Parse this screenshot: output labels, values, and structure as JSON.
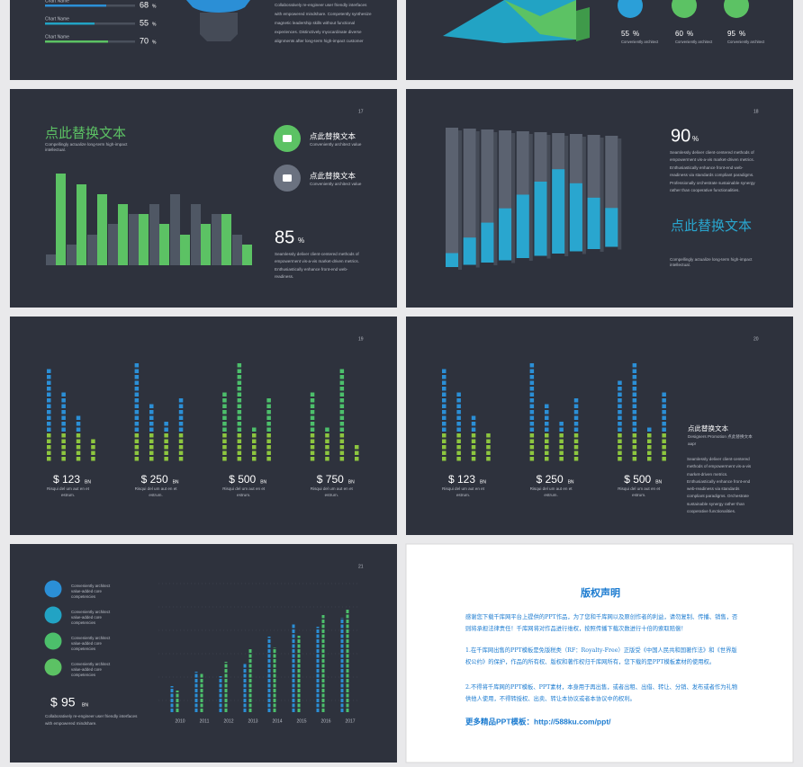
{
  "slide_a": {
    "items": [
      {
        "label": "Chart Name",
        "value": 68,
        "unit": "%"
      },
      {
        "label": "Chart Name",
        "value": 55,
        "unit": "%"
      },
      {
        "label": "Chart Name",
        "value": 70,
        "unit": "%"
      }
    ],
    "text": "Collaboratively re-engineer user friendly interfaces with empowered mindshare. Competently synthesize magnetic leadership skills without functional experiences. Distinctively myocardinate diverse alignments after long-term high-impact customer service."
  },
  "slide_b": {
    "stats": [
      {
        "value": 55,
        "unit": "%",
        "label": "Conveniently architect"
      },
      {
        "value": 60,
        "unit": "%",
        "label": "Conveniently architect"
      },
      {
        "value": 95,
        "unit": "%",
        "label": "Conveniently architect"
      }
    ]
  },
  "slide_17": {
    "page": 17,
    "title": "点此替换文本",
    "subtitle": "Compellingly actualize long-term high-impact intellectual.",
    "chart": {
      "type": "bar",
      "series": [
        {
          "color": "#4f5764",
          "values": [
            12,
            23,
            34,
            46,
            57,
            68,
            79,
            68,
            57,
            34
          ]
        },
        {
          "color": "#5cc264",
          "values": [
            102,
            90,
            79,
            68,
            57,
            46,
            34,
            46,
            57,
            23
          ]
        }
      ]
    },
    "features": [
      {
        "title": "点此替换文本",
        "text": "Conveniently architect value",
        "color": "#5cc264"
      },
      {
        "title": "点此替换文本",
        "text": "Conveniently architect value",
        "color": "#6b7280"
      }
    ],
    "stat": {
      "value": 85,
      "unit": "%"
    },
    "text": "Seamlessly deliver client-centered methods of empowerment vis-a-vis market-driven metrics. Enthusiastically enhance front-end web-readiness."
  },
  "slide_18": {
    "page": 18,
    "chart": {
      "type": "bar",
      "color": "#29a6cf",
      "values": [
        10,
        20,
        30,
        40,
        50,
        60,
        70,
        58,
        45,
        35
      ]
    },
    "stat": {
      "value": 90,
      "unit": "%"
    },
    "text": "Seamlessly deliver client-centered methods of empowerment vis-a-vis market-driven metrics. Enthusiastically enhance front-end web-readiness via standards compliant paradigms. Professionally orchestrate sustainable synergy rather than cooperative functionalities.",
    "title": "点此替换文本",
    "subtitle": "Compellingly actualize long-term high-impact intellectual."
  },
  "slide_19": {
    "page": 19,
    "groups": [
      {
        "values": [
          16,
          12,
          8,
          4
        ],
        "color": "#2b8fd6",
        "currency": "$",
        "amount": 123,
        "unit": "BN",
        "text": "Risqui del um aut en et estrum."
      },
      {
        "values": [
          17,
          10,
          7,
          11
        ],
        "color": "#2b8fd6",
        "currency": "$",
        "amount": 250,
        "unit": "BN",
        "text": "Risqui del um aut en et estrum."
      },
      {
        "values": [
          12,
          17,
          6,
          11
        ],
        "color": "#4cbf6b",
        "currency": "$",
        "amount": 500,
        "unit": "BN",
        "text": "Risqui del um aut en et estrum."
      },
      {
        "values": [
          12,
          6,
          16,
          3
        ],
        "color": "#4cbf6b",
        "currency": "$",
        "amount": 750,
        "unit": "BN",
        "text": "Risqui del um aut en et estrum."
      }
    ]
  },
  "slide_20": {
    "page": 20,
    "groups": [
      {
        "values": [
          16,
          12,
          8,
          5
        ],
        "color": "#2b8fd6",
        "currency": "$",
        "amount": 123,
        "unit": "BN",
        "text": "Risqui del um aut en et estrum."
      },
      {
        "values": [
          17,
          10,
          7,
          11
        ],
        "color": "#2b8fd6",
        "currency": "$",
        "amount": 250,
        "unit": "BN",
        "text": "Risqui del um aut en et estrum."
      },
      {
        "values": [
          14,
          17,
          6,
          12
        ],
        "color": "#2b8fd6",
        "currency": "$",
        "amount": 500,
        "unit": "BN",
        "text": "Risqui del um aut en et estrum."
      }
    ],
    "title": "点此替换文本",
    "subtitle": "Designers Promotion 点此替换文本",
    "subtitle2": "aapr",
    "text": "Seamlessly deliver client-centered methods of empowerment vis-a-vis market-driven metrics. Enthusiastically enhance front-end web-readiness via standards compliant paradigms. Orchestrate sustainable synergy rather than cooperative functionalities."
  },
  "slide_21": {
    "page": 21,
    "items": [
      {
        "text": "Conveniently architect value-added core competencies",
        "color": "#2b8fd6"
      },
      {
        "text": "Conveniently architect value-added core competencies",
        "color": "#22a3c4"
      },
      {
        "text": "Conveniently architect value-added core competencies",
        "color": "#4cbf6b"
      },
      {
        "text": "Conveniently architect value-added core competencies",
        "color": "#5cc264"
      }
    ],
    "stat": {
      "currency": "$",
      "value": 95,
      "unit": "BN"
    },
    "text": "Collaboratively re-engineer user friendly interfaces with empowered mindshare.",
    "chart": {
      "type": "bar",
      "categories": [
        "2010",
        "2011",
        "2012",
        "2013",
        "2014",
        "2015",
        "2016",
        "2017"
      ],
      "series": [
        {
          "color": "#2b8fd6",
          "values": [
            29,
            45,
            40,
            55,
            84,
            98,
            95,
            105
          ]
        },
        {
          "color": "#4cbf6b",
          "values": [
            24,
            43,
            56,
            70,
            72,
            85,
            108,
            114
          ]
        }
      ]
    }
  },
  "notice": {
    "title": "版权声明",
    "paragraphs": [
      "感谢您下载千库网平台上提供的PPT作品，为了您和千库网以及原创作者的利益，请勿复制、传播、销售，否则将承担法律责任！千库网将对作品进行维权，按照传播下载次数进行十倍的索取赔偿！",
      "1.在千库网出售的PPT模板是免版税类（RF：Royalty-Free）正版受《中国人民共和国著作法》和《世界版权公约》的保护，作品的所有权、版权和著作权归千库网所有，您下载的是PPT模板素材的使用权。",
      "2.不得将千库网的PPT模板、PPT素材，本身用于再出售，或者出租、出借、转让、分销、发布或者作为礼物供他人使用，不得转授权、出卖、转让本协议或者本协议中的权利。"
    ],
    "link": "更多精品PPT模板：http://588ku.com/ppt/"
  }
}
